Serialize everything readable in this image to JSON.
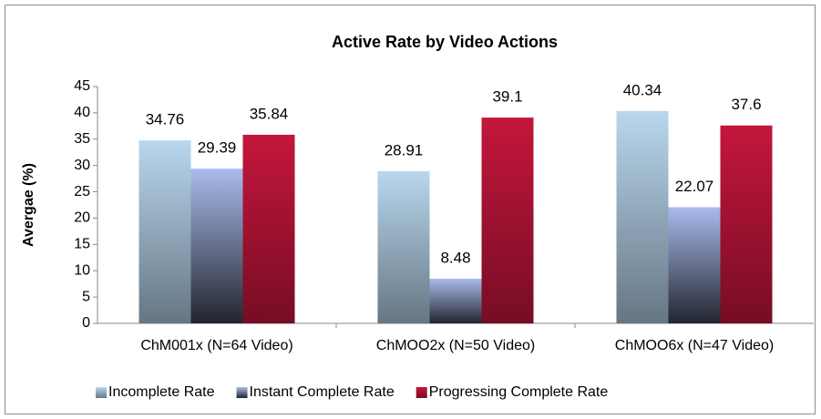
{
  "chart_data": {
    "type": "bar",
    "title": "Active Rate by Video Actions",
    "y_label": "Avergae (%)",
    "categories": [
      "ChM001x (N=64 Video)",
      "ChMOO2x (N=50 Video)",
      "ChMOO6x (N=47 Video)"
    ],
    "series": [
      {
        "name": "Incomplete Rate",
        "color": "#b9d7ee",
        "values": [
          34.76,
          28.91,
          40.34
        ]
      },
      {
        "name": "Instant Complete Rate",
        "color": "#a9bbec",
        "values": [
          29.39,
          8.48,
          22.07
        ]
      },
      {
        "name": "Progressing Complete Rate",
        "color": "#c4163c",
        "values": [
          35.84,
          39.1,
          37.6
        ]
      }
    ],
    "ylim": [
      0,
      45
    ],
    "yticks": [
      0,
      5,
      10,
      15,
      20,
      25,
      30,
      35,
      40,
      45
    ],
    "legend": "bottom",
    "grid": false
  }
}
